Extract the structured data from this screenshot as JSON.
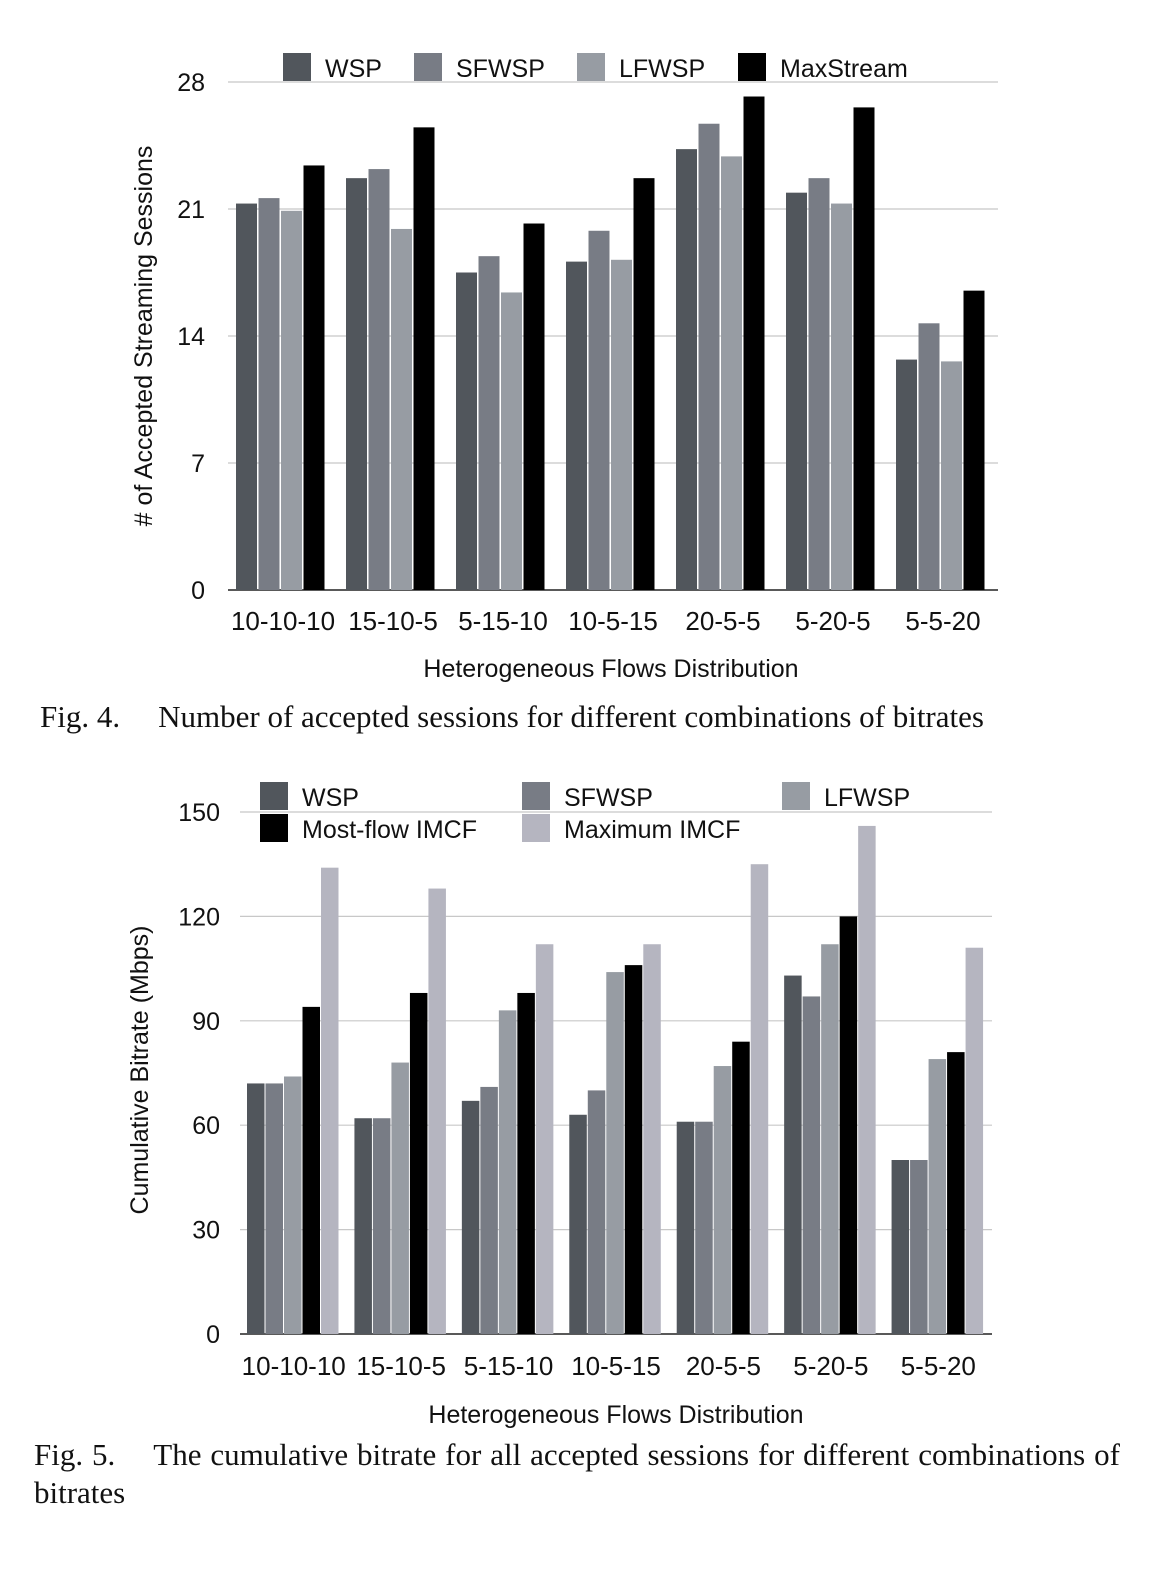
{
  "figures": [
    {
      "caption_label": "Fig. 4.",
      "caption_text": "Number of accepted sessions for different combinations of bitrates"
    },
    {
      "caption_label": "Fig. 5.",
      "caption_text": "The cumulative bitrate for all accepted sessions for different combinations of bitrates"
    }
  ],
  "chart_data": [
    {
      "type": "bar",
      "xlabel": "Heterogeneous Flows Distribution",
      "ylabel": "# of Accepted Streaming Sessions",
      "categories": [
        "10-10-10",
        "15-10-5",
        "5-15-10",
        "10-5-15",
        "20-5-5",
        "5-20-5",
        "5-5-20"
      ],
      "yticks": [
        0,
        7,
        14,
        21,
        28
      ],
      "ylim": [
        0,
        28
      ],
      "grid": true,
      "legend_position": "top",
      "series": [
        {
          "name": "WSP",
          "color": "#51565c",
          "values": [
            21.3,
            22.7,
            17.5,
            18.1,
            24.3,
            21.9,
            12.7
          ]
        },
        {
          "name": "SFWSP",
          "color": "#787c85",
          "values": [
            21.6,
            23.2,
            18.4,
            19.8,
            25.7,
            22.7,
            14.7
          ]
        },
        {
          "name": "LFWSP",
          "color": "#979ca3",
          "values": [
            20.9,
            19.9,
            16.4,
            18.2,
            23.9,
            21.3,
            12.6
          ]
        },
        {
          "name": "MaxStream",
          "color": "#000000",
          "values": [
            23.4,
            25.5,
            20.2,
            22.7,
            27.2,
            26.6,
            16.5
          ]
        }
      ]
    },
    {
      "type": "bar",
      "xlabel": "Heterogeneous Flows Distribution",
      "ylabel": "Cumulative Bitrate (Mbps)",
      "categories": [
        "10-10-10",
        "15-10-5",
        "5-15-10",
        "10-5-15",
        "20-5-5",
        "5-20-5",
        "5-5-20"
      ],
      "yticks": [
        0,
        30,
        60,
        90,
        120,
        150
      ],
      "ylim": [
        0,
        150
      ],
      "grid": true,
      "legend_position": "top",
      "series": [
        {
          "name": "WSP",
          "color": "#51565c",
          "values": [
            72,
            62,
            67,
            63,
            61,
            103,
            50
          ]
        },
        {
          "name": "SFWSP",
          "color": "#787c85",
          "values": [
            72,
            62,
            71,
            70,
            61,
            97,
            50
          ]
        },
        {
          "name": "LFWSP",
          "color": "#979ca3",
          "values": [
            74,
            78,
            93,
            104,
            77,
            112,
            79
          ]
        },
        {
          "name": "Most-flow IMCF",
          "color": "#000000",
          "values": [
            94,
            98,
            98,
            106,
            84,
            120,
            81
          ]
        },
        {
          "name": "Maximum IMCF",
          "color": "#b5b5c0",
          "values": [
            134,
            128,
            112,
            112,
            135,
            146,
            111
          ]
        }
      ]
    }
  ]
}
